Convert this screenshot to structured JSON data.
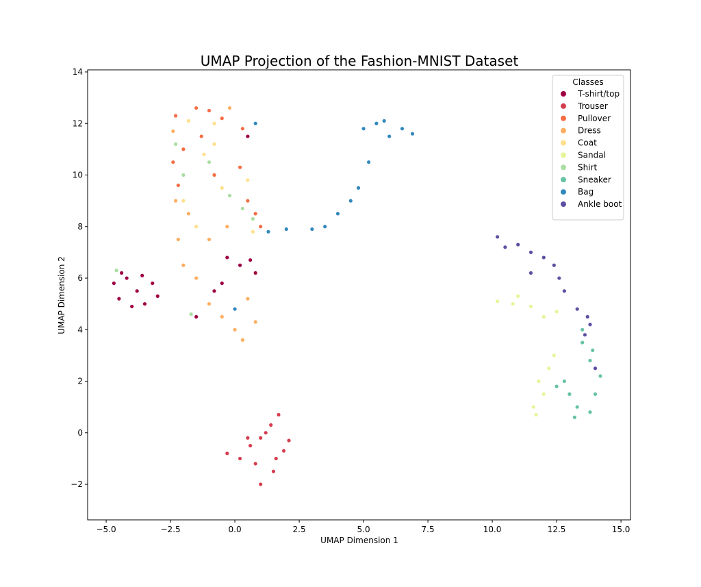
{
  "chart_data": {
    "type": "scatter",
    "title": "UMAP Projection of the Fashion-MNIST Dataset",
    "x_label": "UMAP Dimension 1",
    "y_label": "UMAP Dimension 2",
    "legend_title": "Classes",
    "legend_position": "upper right",
    "xlim": [
      -5.72,
      15.37
    ],
    "ylim": [
      -3.38,
      14.08
    ],
    "xticks": [
      {
        "value": -5,
        "label": "−5.0"
      },
      {
        "value": -2.5,
        "label": "−2.5"
      },
      {
        "value": 0,
        "label": "0.0"
      },
      {
        "value": 2.5,
        "label": "2.5"
      },
      {
        "value": 5,
        "label": "5.0"
      },
      {
        "value": 7.5,
        "label": "7.5"
      },
      {
        "value": 10,
        "label": "10.0"
      },
      {
        "value": 12.5,
        "label": "12.5"
      },
      {
        "value": 15,
        "label": "15.0"
      }
    ],
    "yticks": [
      {
        "value": -2,
        "label": "−2"
      },
      0,
      2,
      4,
      6,
      8,
      10,
      12,
      14
    ],
    "series": [
      {
        "name": "T-shirt/top",
        "color": "#9e0142",
        "x": [
          -4.7,
          -4.5,
          -4.2,
          -3.8,
          -3.5,
          -3.2,
          -3.0,
          -4.0,
          -4.4,
          -3.6,
          -0.3,
          0.2,
          0.6,
          -0.5,
          0.8,
          -1.5,
          0.5,
          -0.8
        ],
        "values": [
          5.8,
          5.2,
          6.0,
          5.5,
          5.0,
          5.8,
          5.3,
          4.9,
          6.2,
          6.1,
          6.8,
          6.5,
          6.7,
          5.8,
          6.2,
          4.5,
          11.5,
          5.5
        ]
      },
      {
        "name": "Trouser",
        "color": "#d53e4f",
        "x": [
          -0.3,
          0.2,
          0.6,
          1.0,
          1.4,
          1.7,
          1.9,
          1.5,
          1.0,
          0.8,
          2.1,
          1.2,
          0.5,
          1.6
        ],
        "values": [
          -0.8,
          -1.0,
          -0.5,
          -0.2,
          0.3,
          0.7,
          -0.7,
          -1.5,
          -2.0,
          -1.2,
          -0.3,
          0.0,
          -0.2,
          -1.0
        ]
      },
      {
        "name": "Pullover",
        "color": "#f46d43",
        "x": [
          -2.3,
          -1.5,
          -1.0,
          -0.5,
          0.3,
          -2.0,
          -2.4,
          0.5,
          0.8,
          1.0,
          -0.8,
          -2.2,
          0.2,
          -1.3
        ],
        "values": [
          12.3,
          12.6,
          12.5,
          12.2,
          11.8,
          11.0,
          10.5,
          9.0,
          8.5,
          8.0,
          10.0,
          9.6,
          10.3,
          11.5
        ]
      },
      {
        "name": "Dress",
        "color": "#fdae61",
        "x": [
          -2.0,
          -1.5,
          -2.2,
          -1.8,
          -1.0,
          0.0,
          0.3,
          0.8,
          -0.5,
          0.5,
          -2.3,
          -1.0,
          -0.3,
          -2.4,
          -0.2
        ],
        "values": [
          6.5,
          6.0,
          7.5,
          8.5,
          5.0,
          4.0,
          3.6,
          4.3,
          4.5,
          5.2,
          9.0,
          7.5,
          8.0,
          11.7,
          12.6
        ]
      },
      {
        "name": "Coat",
        "color": "#fee08b",
        "x": [
          -1.8,
          -0.8,
          -1.2,
          -2.0,
          -0.5,
          0.5,
          -1.5,
          0.7,
          -0.8
        ],
        "values": [
          12.1,
          12.0,
          10.8,
          9.0,
          9.5,
          9.8,
          8.0,
          7.8,
          11.2
        ]
      },
      {
        "name": "Sandal",
        "color": "#e6f598",
        "x": [
          10.2,
          10.8,
          11.5,
          12.0,
          12.5,
          11.8,
          12.2,
          11.6,
          11.7,
          12.0,
          12.4,
          11.0
        ],
        "values": [
          5.1,
          5.0,
          4.9,
          4.5,
          4.7,
          2.0,
          2.5,
          1.0,
          0.7,
          1.5,
          3.0,
          5.3
        ]
      },
      {
        "name": "Shirt",
        "color": "#abdda4",
        "x": [
          -2.3,
          -1.0,
          -0.2,
          0.7,
          -2.0,
          -1.7,
          -4.6,
          0.3
        ],
        "values": [
          11.2,
          10.5,
          9.2,
          8.3,
          10.0,
          4.6,
          6.3,
          8.7
        ]
      },
      {
        "name": "Sneaker",
        "color": "#66c2a5",
        "x": [
          13.5,
          13.8,
          14.2,
          13.0,
          13.3,
          13.8,
          12.8,
          13.5,
          14.0,
          12.5,
          13.2,
          13.9
        ],
        "values": [
          3.5,
          2.8,
          2.2,
          1.5,
          1.0,
          0.8,
          2.0,
          4.0,
          1.5,
          1.8,
          0.6,
          3.2
        ]
      },
      {
        "name": "Bag",
        "color": "#3288bd",
        "x": [
          5.0,
          5.5,
          6.0,
          6.5,
          6.9,
          5.8,
          5.2,
          4.8,
          4.5,
          4.0,
          3.5,
          3.0,
          2.0,
          0.8,
          1.3,
          0.0
        ],
        "values": [
          11.8,
          12.0,
          11.5,
          11.8,
          11.6,
          12.1,
          10.5,
          9.5,
          9.0,
          8.5,
          8.0,
          7.9,
          7.9,
          12.0,
          7.8,
          4.8
        ]
      },
      {
        "name": "Ankle boot",
        "color": "#5e4fa2",
        "x": [
          10.2,
          10.5,
          11.0,
          11.5,
          12.0,
          12.4,
          12.6,
          12.8,
          11.5,
          13.3,
          13.7,
          13.6,
          14.0,
          13.8
        ],
        "values": [
          7.6,
          7.2,
          7.3,
          7.0,
          6.8,
          6.5,
          6.0,
          5.5,
          6.2,
          4.8,
          4.5,
          3.8,
          2.5,
          4.2
        ]
      }
    ]
  }
}
